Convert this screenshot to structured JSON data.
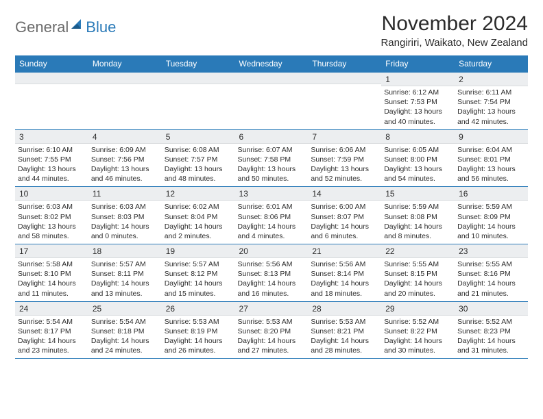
{
  "logo": {
    "text1": "General",
    "text2": "Blue"
  },
  "title": "November 2024",
  "location": "Rangiriri, Waikato, New Zealand",
  "colors": {
    "header_blue": "#2a7ab8",
    "band_gray": "#eceef0",
    "text": "#2b2b2b",
    "logo_gray": "#6b6b6b"
  },
  "day_headers": [
    "Sunday",
    "Monday",
    "Tuesday",
    "Wednesday",
    "Thursday",
    "Friday",
    "Saturday"
  ],
  "weeks": [
    [
      {
        "n": "",
        "sr": "",
        "ss": "",
        "dl": ""
      },
      {
        "n": "",
        "sr": "",
        "ss": "",
        "dl": ""
      },
      {
        "n": "",
        "sr": "",
        "ss": "",
        "dl": ""
      },
      {
        "n": "",
        "sr": "",
        "ss": "",
        "dl": ""
      },
      {
        "n": "",
        "sr": "",
        "ss": "",
        "dl": ""
      },
      {
        "n": "1",
        "sr": "Sunrise: 6:12 AM",
        "ss": "Sunset: 7:53 PM",
        "dl": "Daylight: 13 hours and 40 minutes."
      },
      {
        "n": "2",
        "sr": "Sunrise: 6:11 AM",
        "ss": "Sunset: 7:54 PM",
        "dl": "Daylight: 13 hours and 42 minutes."
      }
    ],
    [
      {
        "n": "3",
        "sr": "Sunrise: 6:10 AM",
        "ss": "Sunset: 7:55 PM",
        "dl": "Daylight: 13 hours and 44 minutes."
      },
      {
        "n": "4",
        "sr": "Sunrise: 6:09 AM",
        "ss": "Sunset: 7:56 PM",
        "dl": "Daylight: 13 hours and 46 minutes."
      },
      {
        "n": "5",
        "sr": "Sunrise: 6:08 AM",
        "ss": "Sunset: 7:57 PM",
        "dl": "Daylight: 13 hours and 48 minutes."
      },
      {
        "n": "6",
        "sr": "Sunrise: 6:07 AM",
        "ss": "Sunset: 7:58 PM",
        "dl": "Daylight: 13 hours and 50 minutes."
      },
      {
        "n": "7",
        "sr": "Sunrise: 6:06 AM",
        "ss": "Sunset: 7:59 PM",
        "dl": "Daylight: 13 hours and 52 minutes."
      },
      {
        "n": "8",
        "sr": "Sunrise: 6:05 AM",
        "ss": "Sunset: 8:00 PM",
        "dl": "Daylight: 13 hours and 54 minutes."
      },
      {
        "n": "9",
        "sr": "Sunrise: 6:04 AM",
        "ss": "Sunset: 8:01 PM",
        "dl": "Daylight: 13 hours and 56 minutes."
      }
    ],
    [
      {
        "n": "10",
        "sr": "Sunrise: 6:03 AM",
        "ss": "Sunset: 8:02 PM",
        "dl": "Daylight: 13 hours and 58 minutes."
      },
      {
        "n": "11",
        "sr": "Sunrise: 6:03 AM",
        "ss": "Sunset: 8:03 PM",
        "dl": "Daylight: 14 hours and 0 minutes."
      },
      {
        "n": "12",
        "sr": "Sunrise: 6:02 AM",
        "ss": "Sunset: 8:04 PM",
        "dl": "Daylight: 14 hours and 2 minutes."
      },
      {
        "n": "13",
        "sr": "Sunrise: 6:01 AM",
        "ss": "Sunset: 8:06 PM",
        "dl": "Daylight: 14 hours and 4 minutes."
      },
      {
        "n": "14",
        "sr": "Sunrise: 6:00 AM",
        "ss": "Sunset: 8:07 PM",
        "dl": "Daylight: 14 hours and 6 minutes."
      },
      {
        "n": "15",
        "sr": "Sunrise: 5:59 AM",
        "ss": "Sunset: 8:08 PM",
        "dl": "Daylight: 14 hours and 8 minutes."
      },
      {
        "n": "16",
        "sr": "Sunrise: 5:59 AM",
        "ss": "Sunset: 8:09 PM",
        "dl": "Daylight: 14 hours and 10 minutes."
      }
    ],
    [
      {
        "n": "17",
        "sr": "Sunrise: 5:58 AM",
        "ss": "Sunset: 8:10 PM",
        "dl": "Daylight: 14 hours and 11 minutes."
      },
      {
        "n": "18",
        "sr": "Sunrise: 5:57 AM",
        "ss": "Sunset: 8:11 PM",
        "dl": "Daylight: 14 hours and 13 minutes."
      },
      {
        "n": "19",
        "sr": "Sunrise: 5:57 AM",
        "ss": "Sunset: 8:12 PM",
        "dl": "Daylight: 14 hours and 15 minutes."
      },
      {
        "n": "20",
        "sr": "Sunrise: 5:56 AM",
        "ss": "Sunset: 8:13 PM",
        "dl": "Daylight: 14 hours and 16 minutes."
      },
      {
        "n": "21",
        "sr": "Sunrise: 5:56 AM",
        "ss": "Sunset: 8:14 PM",
        "dl": "Daylight: 14 hours and 18 minutes."
      },
      {
        "n": "22",
        "sr": "Sunrise: 5:55 AM",
        "ss": "Sunset: 8:15 PM",
        "dl": "Daylight: 14 hours and 20 minutes."
      },
      {
        "n": "23",
        "sr": "Sunrise: 5:55 AM",
        "ss": "Sunset: 8:16 PM",
        "dl": "Daylight: 14 hours and 21 minutes."
      }
    ],
    [
      {
        "n": "24",
        "sr": "Sunrise: 5:54 AM",
        "ss": "Sunset: 8:17 PM",
        "dl": "Daylight: 14 hours and 23 minutes."
      },
      {
        "n": "25",
        "sr": "Sunrise: 5:54 AM",
        "ss": "Sunset: 8:18 PM",
        "dl": "Daylight: 14 hours and 24 minutes."
      },
      {
        "n": "26",
        "sr": "Sunrise: 5:53 AM",
        "ss": "Sunset: 8:19 PM",
        "dl": "Daylight: 14 hours and 26 minutes."
      },
      {
        "n": "27",
        "sr": "Sunrise: 5:53 AM",
        "ss": "Sunset: 8:20 PM",
        "dl": "Daylight: 14 hours and 27 minutes."
      },
      {
        "n": "28",
        "sr": "Sunrise: 5:53 AM",
        "ss": "Sunset: 8:21 PM",
        "dl": "Daylight: 14 hours and 28 minutes."
      },
      {
        "n": "29",
        "sr": "Sunrise: 5:52 AM",
        "ss": "Sunset: 8:22 PM",
        "dl": "Daylight: 14 hours and 30 minutes."
      },
      {
        "n": "30",
        "sr": "Sunrise: 5:52 AM",
        "ss": "Sunset: 8:23 PM",
        "dl": "Daylight: 14 hours and 31 minutes."
      }
    ]
  ]
}
